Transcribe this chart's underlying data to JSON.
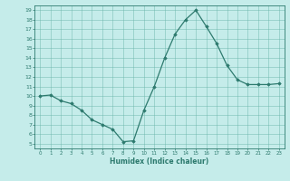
{
  "x": [
    0,
    1,
    2,
    3,
    4,
    5,
    6,
    7,
    8,
    9,
    10,
    11,
    12,
    13,
    14,
    15,
    16,
    17,
    18,
    19,
    20,
    21,
    22,
    23
  ],
  "y": [
    10,
    10.1,
    9.5,
    9.2,
    8.5,
    7.5,
    7.0,
    6.5,
    5.2,
    5.3,
    8.5,
    11.0,
    14.0,
    16.5,
    18.0,
    19.0,
    17.3,
    15.5,
    13.2,
    11.7,
    11.2,
    11.2,
    11.2,
    11.3
  ],
  "xlim": [
    -0.5,
    23.5
  ],
  "ylim": [
    4.5,
    19.5
  ],
  "xticks": [
    0,
    1,
    2,
    3,
    4,
    5,
    6,
    7,
    8,
    9,
    10,
    11,
    12,
    13,
    14,
    15,
    16,
    17,
    18,
    19,
    20,
    21,
    22,
    23
  ],
  "yticks": [
    5,
    6,
    7,
    8,
    9,
    10,
    11,
    12,
    13,
    14,
    15,
    16,
    17,
    18,
    19
  ],
  "xlabel": "Humidex (Indice chaleur)",
  "line_color": "#2d7a6e",
  "marker_color": "#2d7a6e",
  "bg_color": "#c5ecea",
  "grid_color": "#6ab5aa",
  "axes_color": "#2d7a6e",
  "tick_label_color": "#2d7a6e",
  "xlabel_color": "#2d7a6e"
}
